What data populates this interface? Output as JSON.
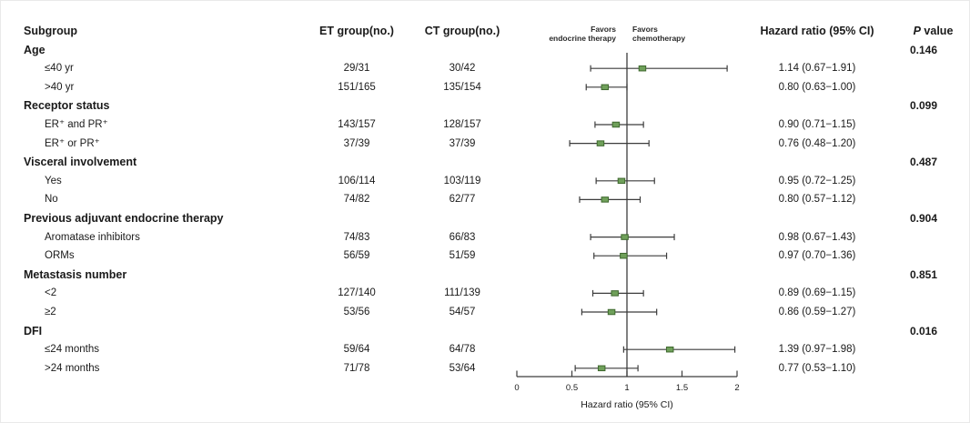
{
  "header": {
    "subgroup": "Subgroup",
    "et_group": "ET group(no.)",
    "ct_group": "CT group(no.)",
    "favors_left": [
      "Favors",
      "endocrine therapy"
    ],
    "favors_right": [
      "Favors",
      "chemotherapy"
    ],
    "hazard_ratio": "Hazard ratio (95% CI)",
    "p_italic": "P",
    "p_rest": " value"
  },
  "axis": {
    "label": "Hazard ratio (95% CI)",
    "min": 0,
    "max": 2,
    "reference": 1,
    "ticks": [
      {
        "value": 0,
        "label": "0"
      },
      {
        "value": 0.5,
        "label": "0.5"
      },
      {
        "value": 1,
        "label": "1"
      },
      {
        "value": 1.5,
        "label": "1.5"
      },
      {
        "value": 2,
        "label": "2"
      }
    ]
  },
  "colors": {
    "marker_fill": "#6fa05a",
    "marker_stroke": "#3e682e",
    "line": "#3c3c3c",
    "text": "#1a1a1a"
  },
  "chart_data": {
    "type": "forest",
    "xlabel": "Hazard ratio (95% CI)",
    "xlim": [
      0,
      2
    ],
    "xticks": [
      0,
      0.5,
      1,
      1.5,
      2
    ],
    "reference_line": 1,
    "legend_left": "Favors endocrine therapy",
    "legend_right": "Favors chemotherapy",
    "groups": [
      {
        "label": "Age",
        "p_value": "0.146",
        "items": [
          {
            "label": "≤40 yr",
            "et": "29/31",
            "ct": "30/42",
            "hr": 1.14,
            "ci_low": 0.67,
            "ci_high": 1.91,
            "hr_text": "1.14 (0.67−1.91)"
          },
          {
            "label": ">40 yr",
            "et": "151/165",
            "ct": "135/154",
            "hr": 0.8,
            "ci_low": 0.63,
            "ci_high": 1.0,
            "hr_text": "0.80 (0.63−1.00)"
          }
        ]
      },
      {
        "label": "Receptor status",
        "p_value": "0.099",
        "items": [
          {
            "label": "ER⁺ and PR⁺",
            "et": "143/157",
            "ct": "128/157",
            "hr": 0.9,
            "ci_low": 0.71,
            "ci_high": 1.15,
            "hr_text": "0.90 (0.71−1.15)"
          },
          {
            "label": "ER⁺ or PR⁺",
            "et": "37/39",
            "ct": "37/39",
            "hr": 0.76,
            "ci_low": 0.48,
            "ci_high": 1.2,
            "hr_text": "0.76 (0.48−1.20)"
          }
        ]
      },
      {
        "label": "Visceral involvement",
        "p_value": "0.487",
        "items": [
          {
            "label": "Yes",
            "et": "106/114",
            "ct": "103/119",
            "hr": 0.95,
            "ci_low": 0.72,
            "ci_high": 1.25,
            "hr_text": "0.95 (0.72−1.25)"
          },
          {
            "label": "No",
            "et": "74/82",
            "ct": "62/77",
            "hr": 0.8,
            "ci_low": 0.57,
            "ci_high": 1.12,
            "hr_text": "0.80 (0.57−1.12)"
          }
        ]
      },
      {
        "label": "Previous adjuvant endocrine therapy",
        "p_value": "0.904",
        "items": [
          {
            "label": "Aromatase inhibitors",
            "et": "74/83",
            "ct": "66/83",
            "hr": 0.98,
            "ci_low": 0.67,
            "ci_high": 1.43,
            "hr_text": "0.98 (0.67−1.43)"
          },
          {
            "label": "ORMs",
            "et": "56/59",
            "ct": "51/59",
            "hr": 0.97,
            "ci_low": 0.7,
            "ci_high": 1.36,
            "hr_text": "0.97 (0.70−1.36)"
          }
        ]
      },
      {
        "label": "Metastasis number",
        "p_value": "0.851",
        "items": [
          {
            "label": "<2",
            "et": "127/140",
            "ct": "111/139",
            "hr": 0.89,
            "ci_low": 0.69,
            "ci_high": 1.15,
            "hr_text": "0.89 (0.69−1.15)"
          },
          {
            "label": "≥2",
            "et": "53/56",
            "ct": "54/57",
            "hr": 0.86,
            "ci_low": 0.59,
            "ci_high": 1.27,
            "hr_text": "0.86 (0.59−1.27)"
          }
        ]
      },
      {
        "label": "DFI",
        "p_value": "0.016",
        "items": [
          {
            "label": "≤24 months",
            "et": "59/64",
            "ct": "64/78",
            "hr": 1.39,
            "ci_low": 0.97,
            "ci_high": 1.98,
            "hr_text": "1.39 (0.97−1.98)"
          },
          {
            "label": ">24 months",
            "et": "71/78",
            "ct": "53/64",
            "hr": 0.77,
            "ci_low": 0.53,
            "ci_high": 1.1,
            "hr_text": "0.77 (0.53−1.10)"
          }
        ]
      }
    ]
  }
}
